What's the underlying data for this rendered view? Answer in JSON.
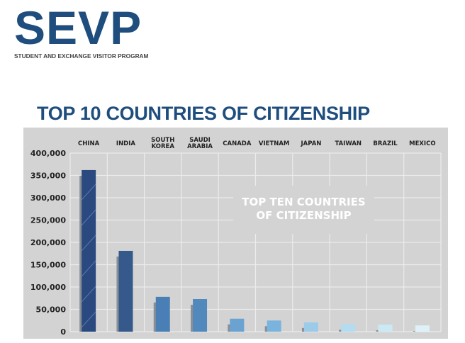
{
  "logo": {
    "text": "SEVP",
    "subtitle": "STUDENT AND EXCHANGE VISITOR PROGRAM"
  },
  "page_title": "TOP 10 COUNTRIES OF CITIZENSHIP",
  "chart_data": {
    "type": "bar",
    "categories": [
      "CHINA",
      "INDIA",
      "SOUTH KOREA",
      "SAUDI ARABIA",
      "CANADA",
      "VIETNAM",
      "JAPAN",
      "TAIWAN",
      "BRAZIL",
      "MEXICO"
    ],
    "values": [
      362000,
      181000,
      78000,
      73000,
      29000,
      25000,
      21000,
      17000,
      16000,
      14000
    ],
    "colors": [
      "#2a4a7f",
      "#35598a",
      "#4a7fb5",
      "#5189bc",
      "#6aa3d2",
      "#7ab3de",
      "#9ccbea",
      "#b3dcf0",
      "#cbe9f5",
      "#dff1f8"
    ],
    "ylim": [
      0,
      400000
    ],
    "yticks": [
      "0",
      "50,000",
      "100,000",
      "150,000",
      "200,000",
      "250,000",
      "300,000",
      "350,000",
      "400,000"
    ],
    "annotation": [
      "TOP TEN COUNTRIES",
      "OF CITIZENSHIP"
    ],
    "grid": true,
    "category_labels_position": "top",
    "background": "#d3d3d3"
  }
}
